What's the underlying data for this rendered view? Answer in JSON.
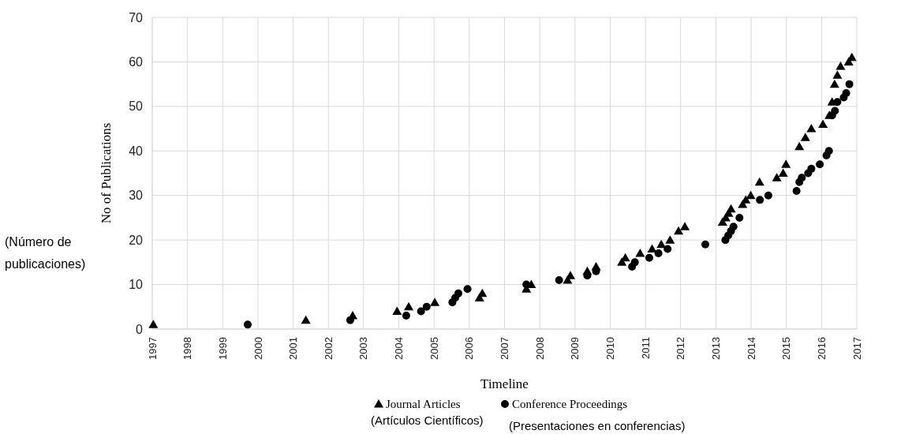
{
  "chart_data": {
    "type": "scatter",
    "xlabel": "Timeline",
    "ylabel": "No of Publications",
    "xlim": [
      1997,
      2017
    ],
    "xticks": [
      1997,
      1998,
      1999,
      2000,
      2001,
      2002,
      2003,
      2004,
      2005,
      2006,
      2007,
      2008,
      2009,
      2010,
      2011,
      2012,
      2013,
      2014,
      2015,
      2016,
      2017
    ],
    "ylim": [
      0,
      70
    ],
    "yticks": [
      0,
      10,
      20,
      30,
      40,
      50,
      60,
      70
    ],
    "grid": true,
    "legend": "bottom",
    "series": [
      {
        "name": "Journal Articles",
        "color": "#000000",
        "marker": "triangle",
        "x": [
          1997.03,
          2001.36,
          2002.69,
          2003.95,
          2004.28,
          2005.02,
          2006.29,
          2006.37,
          2007.62,
          2007.76,
          2008.79,
          2008.87,
          2009.35,
          2009.6,
          2010.33,
          2010.43,
          2010.85,
          2011.19,
          2011.45,
          2011.7,
          2011.94,
          2012.12,
          2013.19,
          2013.28,
          2013.36,
          2013.43,
          2013.76,
          2013.85,
          2013.99,
          2014.24,
          2014.73,
          2014.91,
          2014.99,
          2015.37,
          2015.54,
          2015.71,
          2016.04,
          2016.22,
          2016.3,
          2016.37,
          2016.45,
          2016.54,
          2016.77,
          2016.86
        ],
        "values": [
          1,
          2,
          3,
          4,
          5,
          6,
          7,
          8,
          9,
          10,
          11,
          12,
          13,
          14,
          15,
          16,
          17,
          18,
          19,
          20,
          22,
          23,
          24,
          25,
          26,
          27,
          28,
          29,
          30,
          33,
          34,
          35,
          37,
          41,
          43,
          45,
          46,
          48,
          51,
          55,
          57,
          59,
          60,
          61
        ]
      },
      {
        "name": "Conference Proceedings",
        "color": "#000000",
        "marker": "circle",
        "x": [
          1999.71,
          2002.62,
          2004.21,
          2004.63,
          2004.79,
          2005.52,
          2005.6,
          2005.69,
          2005.95,
          2007.62,
          2008.55,
          2009.35,
          2009.6,
          2010.62,
          2010.7,
          2011.11,
          2011.37,
          2011.63,
          2012.7,
          2013.27,
          2013.35,
          2013.43,
          2013.5,
          2013.67,
          2014.25,
          2014.49,
          2015.29,
          2015.37,
          2015.44,
          2015.62,
          2015.71,
          2015.95,
          2016.14,
          2016.21,
          2016.3,
          2016.38,
          2016.45,
          2016.63,
          2016.7,
          2016.79
        ],
        "values": [
          1,
          2,
          3,
          4,
          5,
          6,
          7,
          8,
          9,
          10,
          11,
          12,
          13,
          14,
          15,
          16,
          17,
          18,
          19,
          20,
          21,
          22,
          23,
          25,
          29,
          30,
          31,
          33,
          34,
          35,
          36,
          37,
          39,
          40,
          48,
          49,
          51,
          52,
          53,
          55
        ]
      }
    ],
    "annotations": [
      "(Número de publicaciones)",
      "(Artículos Científicos)",
      "(Presentaciones en conferencias)"
    ]
  }
}
